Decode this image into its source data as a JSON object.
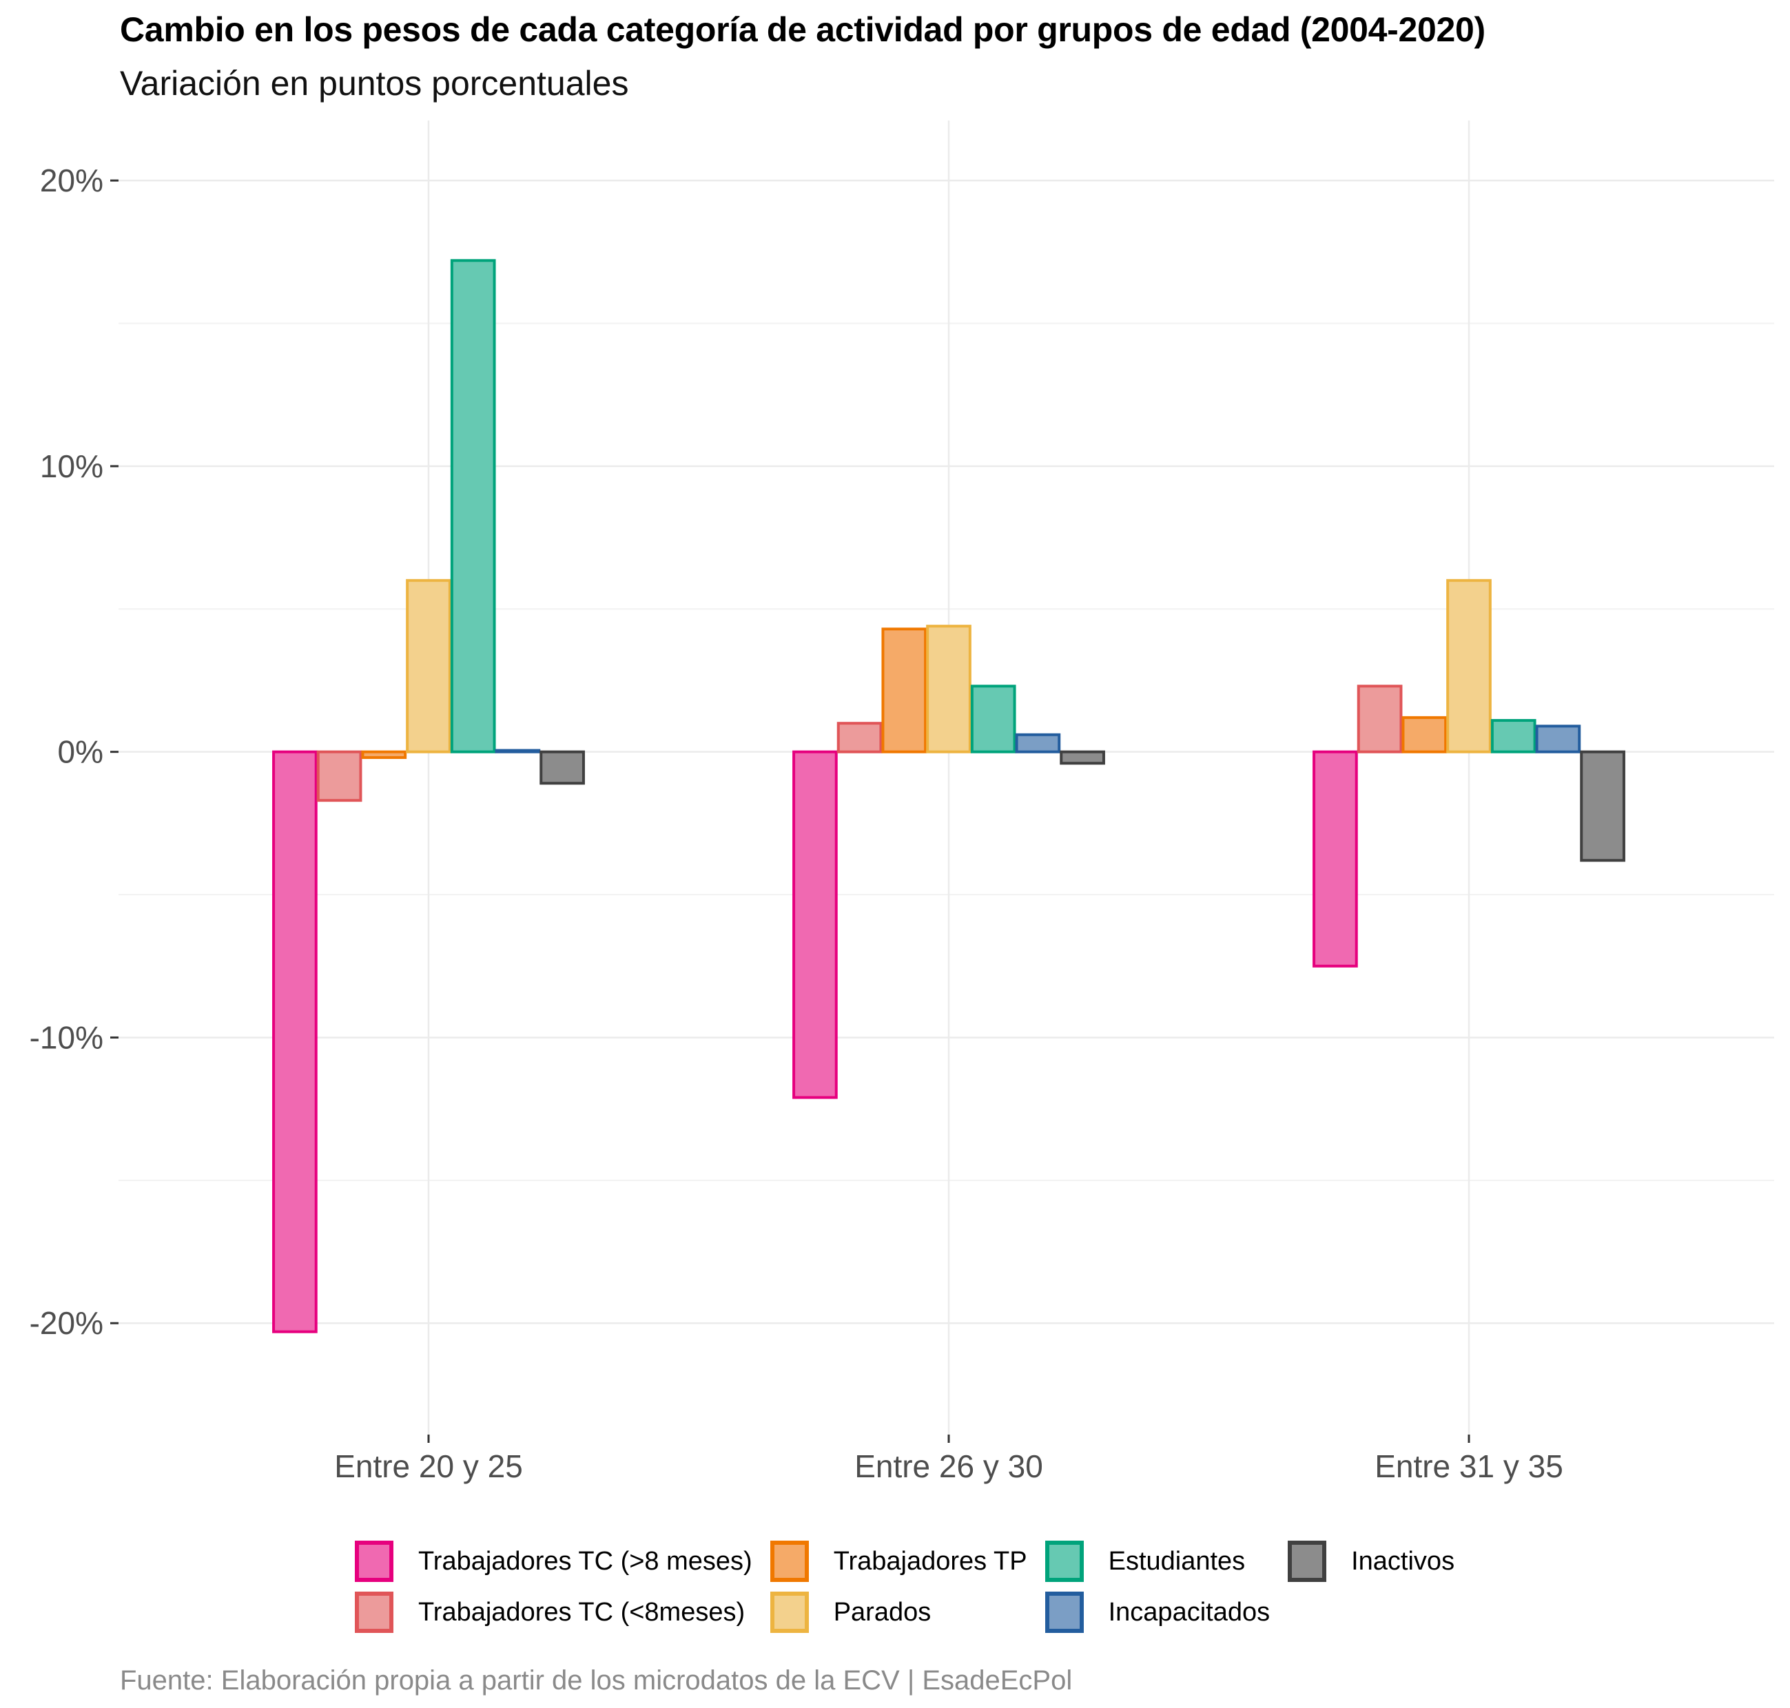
{
  "header": {
    "title": "Cambio en los pesos de cada categoría de actividad por grupos de edad (2004-2020)",
    "subtitle": "Variación en puntos porcentuales"
  },
  "footer": {
    "source": "Fuente: Elaboración propia a partir de los microdatos de la ECV | EsadeEcPol"
  },
  "chart_data": {
    "type": "bar",
    "orientation": "vertical",
    "grouping": "dodged",
    "title": "Cambio en los pesos de cada categoría de actividad por grupos de edad (2004-2020)",
    "subtitle": "Variación en puntos porcentuales",
    "xlabel": "",
    "ylabel": "",
    "categories": [
      "Entre 20 y 25",
      "Entre 26 y 30",
      "Entre 31 y 35"
    ],
    "ylim": [
      -23.9,
      22.1
    ],
    "yticks": [
      -20,
      -10,
      0,
      10,
      20
    ],
    "ytick_labels": [
      "-20%",
      "-10%",
      "0%",
      "10%",
      "20%"
    ],
    "minor_gridlines": [
      -15,
      -5,
      5,
      15
    ],
    "grid": true,
    "legend_position": "bottom",
    "series": [
      {
        "name": "Trabajadores TC (>8 meses)",
        "stroke": "#E6007E",
        "fill": "#F069B1",
        "values": [
          -20.3,
          -12.1,
          -7.5
        ]
      },
      {
        "name": "Trabajadores TC (<8meses)",
        "stroke": "#E05558",
        "fill": "#EC9B9B",
        "values": [
          -1.7,
          1.0,
          2.3
        ]
      },
      {
        "name": "Trabajadores TP",
        "stroke": "#F07800",
        "fill": "#F5AA68",
        "values": [
          -0.2,
          4.3,
          1.2
        ]
      },
      {
        "name": "Parados",
        "stroke": "#EDB441",
        "fill": "#F3D18D",
        "values": [
          6.0,
          4.4,
          6.0
        ]
      },
      {
        "name": "Estudiantes",
        "stroke": "#00A37B",
        "fill": "#66C9B2",
        "values": [
          17.2,
          2.3,
          1.1
        ]
      },
      {
        "name": "Incapacitados",
        "stroke": "#235D9E",
        "fill": "#7B9EC5",
        "values": [
          0.05,
          0.6,
          0.9
        ]
      },
      {
        "name": "Inactivos",
        "stroke": "#404040",
        "fill": "#8C8C8C",
        "values": [
          -1.1,
          -0.4,
          -3.8
        ]
      }
    ],
    "legend_order": [
      0,
      1,
      2,
      3,
      4,
      5,
      6
    ]
  }
}
